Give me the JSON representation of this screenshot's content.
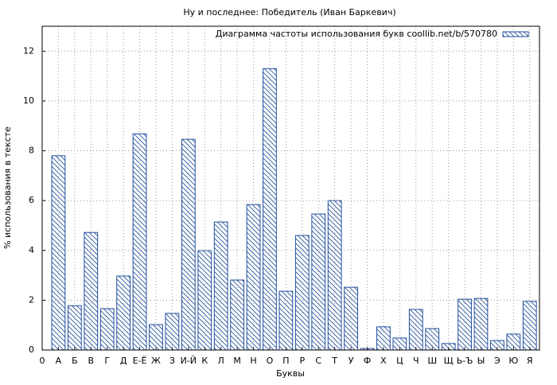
{
  "chart_data": {
    "type": "bar",
    "title": "Ну и последнее: Победитель (Иван Баркевич)",
    "xlabel": "Буквы",
    "ylabel": "% использования в тексте",
    "xlim": [
      0,
      30.6
    ],
    "xticks": [
      {
        "value": 0,
        "label": "0"
      },
      {
        "value": 1,
        "label": "А"
      },
      {
        "value": 2,
        "label": "Б"
      },
      {
        "value": 3,
        "label": "В"
      },
      {
        "value": 4,
        "label": "Г"
      },
      {
        "value": 5,
        "label": "Д"
      },
      {
        "value": 6,
        "label": "Е-Ё"
      },
      {
        "value": 7,
        "label": "Ж"
      },
      {
        "value": 8,
        "label": "З"
      },
      {
        "value": 9,
        "label": "И-Й"
      },
      {
        "value": 10,
        "label": "К"
      },
      {
        "value": 11,
        "label": "Л"
      },
      {
        "value": 12,
        "label": "М"
      },
      {
        "value": 13,
        "label": "Н"
      },
      {
        "value": 14,
        "label": "О"
      },
      {
        "value": 15,
        "label": "П"
      },
      {
        "value": 16,
        "label": "Р"
      },
      {
        "value": 17,
        "label": "С"
      },
      {
        "value": 18,
        "label": "Т"
      },
      {
        "value": 19,
        "label": "У"
      },
      {
        "value": 20,
        "label": "Ф"
      },
      {
        "value": 21,
        "label": "Х"
      },
      {
        "value": 22,
        "label": "Ц"
      },
      {
        "value": 23,
        "label": "Ч"
      },
      {
        "value": 24,
        "label": "Ш"
      },
      {
        "value": 25,
        "label": "Щ"
      },
      {
        "value": 26,
        "label": "Ь-Ъ"
      },
      {
        "value": 27,
        "label": "Ы"
      },
      {
        "value": 28,
        "label": "Э"
      },
      {
        "value": 29,
        "label": "Ю"
      },
      {
        "value": 30,
        "label": "Я"
      }
    ],
    "ylim": [
      0,
      13
    ],
    "yticks": [
      0,
      2,
      4,
      6,
      8,
      10,
      12
    ],
    "grid": true,
    "legend": "upper right",
    "series": [
      {
        "name": "Диаграмма частоты использования букв coollib.net/b/570780",
        "color": "#1f4e9c",
        "x": [
          1,
          2,
          3,
          4,
          5,
          6,
          7,
          8,
          9,
          10,
          11,
          12,
          13,
          14,
          15,
          16,
          17,
          18,
          19,
          20,
          21,
          22,
          23,
          24,
          25,
          26,
          27,
          28,
          29,
          30
        ],
        "values": [
          7.8,
          1.78,
          4.72,
          1.66,
          2.97,
          8.68,
          1.02,
          1.47,
          8.46,
          3.99,
          5.14,
          2.81,
          5.84,
          11.3,
          2.36,
          4.6,
          5.46,
          6.0,
          2.52,
          0.06,
          0.93,
          0.48,
          1.63,
          0.86,
          0.26,
          2.04,
          2.07,
          0.38,
          0.64,
          1.95
        ]
      }
    ]
  }
}
